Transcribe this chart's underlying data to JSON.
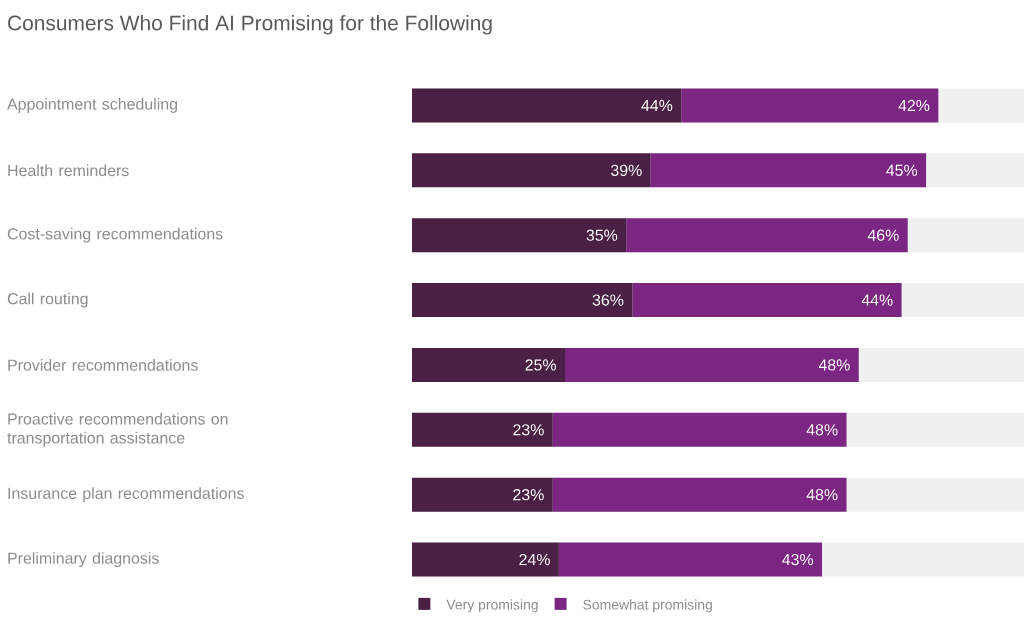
{
  "chart_data": {
    "type": "bar",
    "orientation": "horizontal",
    "stacked": true,
    "title": "Consumers Who Find AI Promising for the Following",
    "categories": [
      "Appointment scheduling",
      "Health reminders",
      "Cost-saving recommendations",
      "Call routing",
      "Provider recommendations",
      "Proactive recommendations on transportation assistance",
      "Insurance plan recommendations",
      "Preliminary diagnosis"
    ],
    "series": [
      {
        "name": "Very promising",
        "color": "#4a2145",
        "values": [
          44,
          39,
          35,
          36,
          25,
          23,
          23,
          24
        ],
        "value_labels": [
          "44%",
          "39%",
          "35%",
          "36%",
          "25%",
          "23%",
          "23%",
          "24%"
        ]
      },
      {
        "name": "Somewhat promising",
        "color": "#7b2682",
        "values": [
          42,
          45,
          46,
          44,
          48,
          48,
          48,
          43
        ],
        "value_labels": [
          "42%",
          "45%",
          "46%",
          "44%",
          "48%",
          "48%",
          "48%",
          "43%"
        ]
      }
    ],
    "xlim": [
      0,
      100
    ],
    "tick_labels": "y",
    "legend": "bottom"
  }
}
